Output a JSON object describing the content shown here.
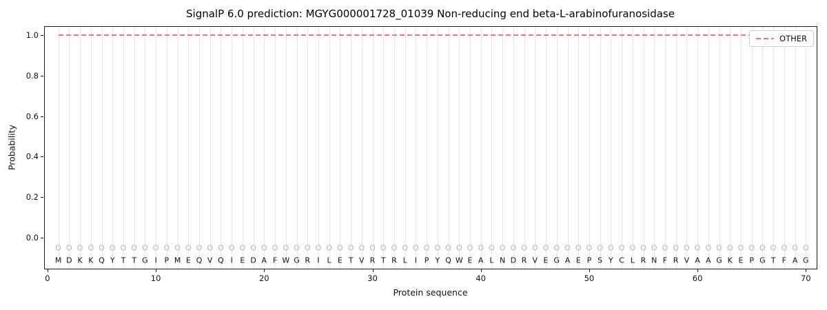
{
  "chart_data": {
    "type": "line",
    "title": "SignalP 6.0 prediction: MGYG000001728_01039 Non-reducing end beta-L-arabinofuranosidase",
    "xlabel": "Protein sequence",
    "ylabel": "Probability",
    "xlim": [
      -0.25,
      71.0
    ],
    "ylim": [
      -0.153,
      1.041
    ],
    "xticks": [
      0,
      10,
      20,
      30,
      40,
      50,
      60,
      70
    ],
    "yticks": [
      0.0,
      0.2,
      0.4,
      0.6,
      0.8,
      1.0
    ],
    "grid": "vertical-per-residue",
    "legend_position": "upper right",
    "legend_label": "OTHER",
    "line_color": "#ee7777",
    "series": [
      {
        "name": "OTHER",
        "style": "dashed",
        "color": "#ee7777",
        "constant_value": 1.0,
        "x_range": [
          1,
          70
        ]
      }
    ],
    "sequence": "MDKKQYTTGIPMEQVQIEDAFWGRILETVRTRLIPYQWEALNDRVEGAEPSYCLRNFRVAAGKEPGTFAG",
    "per_residue_labels": "OOOOOOOOOOOOOOOOOOOOOOOOOOOOOOOOOOOOOOOOOOOOOOOOOOOOOOOOOOOOOOOOOOOOOO",
    "marker_y": -0.05,
    "letter_y": -0.112
  }
}
